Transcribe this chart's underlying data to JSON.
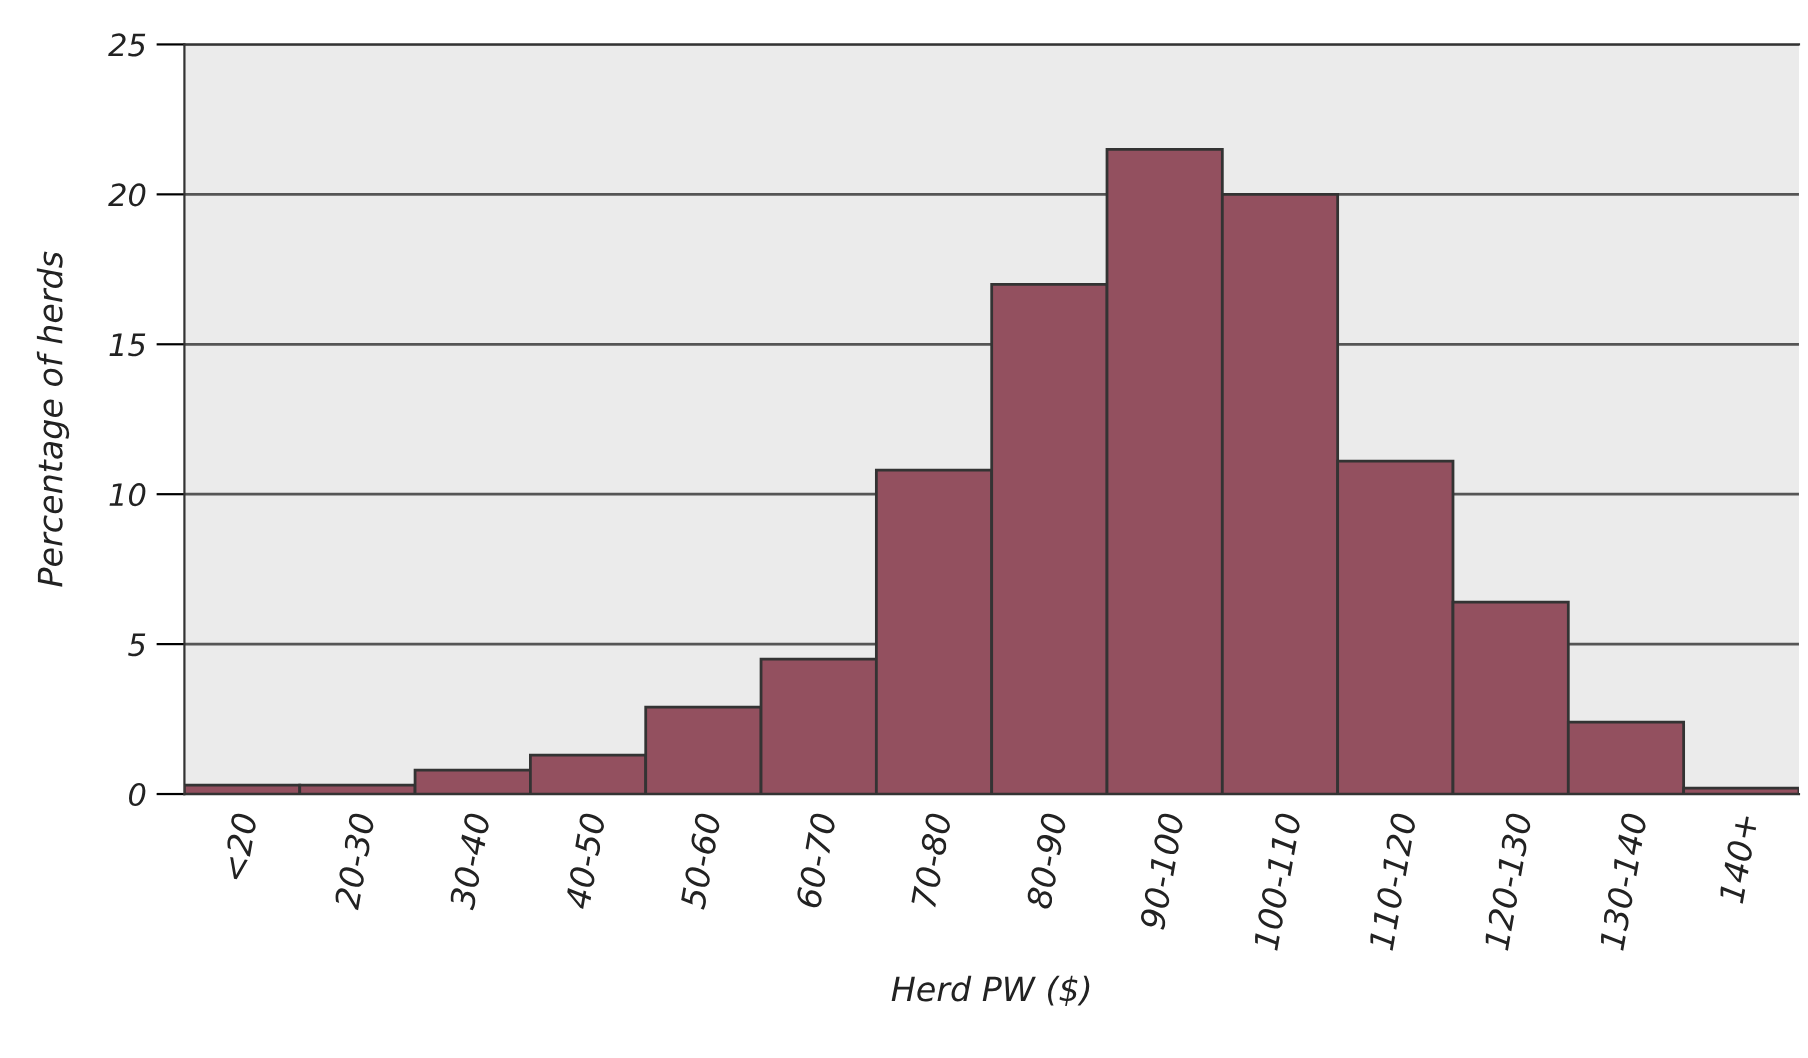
{
  "chart_data": {
    "type": "bar",
    "xlabel": "Herd PW ($)",
    "ylabel": "Percentage of herds",
    "categories": [
      "<20",
      "20-30",
      "30-40",
      "40-50",
      "50-60",
      "60-70",
      "70-80",
      "80-90",
      "90-100",
      "100-110",
      "110-120",
      "120-130",
      "130-140",
      "140+"
    ],
    "values": [
      0.3,
      0.3,
      0.8,
      1.3,
      2.9,
      4.5,
      10.8,
      17.0,
      21.5,
      20.0,
      11.1,
      6.4,
      2.4,
      0.2
    ],
    "color": "#93505f",
    "ylim": [
      0,
      25
    ],
    "yticks": [
      0,
      5,
      10,
      15,
      20,
      25
    ],
    "grid": "y",
    "legend": false
  }
}
